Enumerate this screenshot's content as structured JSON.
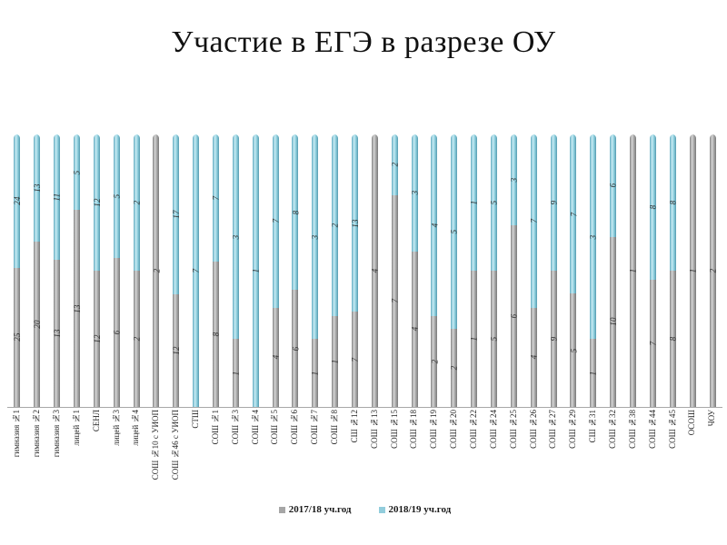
{
  "title": "Участие в ЕГЭ в разрезе ОУ",
  "colors": {
    "series_2017_18": "#a6a6a6",
    "series_2018_19": "#92cddc",
    "axis": "#a8a8a8"
  },
  "legend": [
    {
      "label": "2017/18 уч.год",
      "color": "#a6a6a6"
    },
    {
      "label": "2018/19 уч.год",
      "color": "#92cddc"
    }
  ],
  "chart_data": {
    "type": "bar",
    "subtype": "100%-stacked-column",
    "title": "Участие в ЕГЭ в разрезе ОУ",
    "xlabel": "",
    "ylabel": "",
    "ylim_percent": [
      0,
      100
    ],
    "grid": false,
    "legend_position": "bottom",
    "value_labels": "on segments, rotated 90° CCW, italic",
    "categories": [
      "гимназия №1",
      "гимназия №2",
      "гимназия №3",
      "лицей №1",
      "СЕНЛ",
      "лицей №3",
      "лицей №4",
      "СОШ №10 с УИОП",
      "СОШ №46 с УИОП",
      "СТШ",
      "СОШ №1",
      "СОШ №3",
      "СОШ №4",
      "СОШ №5",
      "СОШ №6",
      "СОШ №7",
      "СОШ №8",
      "СШ №12",
      "СОШ №13",
      "СОШ №15",
      "СОШ №18",
      "СОШ №19",
      "СОШ №20",
      "СОШ №22",
      "СОШ №24",
      "СОШ №25",
      "СОШ №26",
      "СОШ №27",
      "СОШ №29",
      "СШ №31",
      "СОШ №32",
      "СОШ №38",
      "СОШ №44",
      "СОШ №45",
      "ОСОШ",
      "ЧОУ"
    ],
    "series": [
      {
        "name": "2017/18 уч.год",
        "color": "#a6a6a6",
        "stack_position": "bottom",
        "values": [
          25,
          20,
          13,
          13,
          12,
          6,
          2,
          2,
          12,
          0,
          8,
          1,
          0,
          4,
          6,
          1,
          1,
          7,
          4,
          7,
          4,
          2,
          2,
          1,
          5,
          6,
          4,
          9,
          5,
          1,
          10,
          1,
          7,
          8,
          1,
          2
        ]
      },
      {
        "name": "2018/19 уч.год",
        "color": "#92cddc",
        "stack_position": "top",
        "values": [
          24,
          13,
          11,
          5,
          12,
          5,
          2,
          0,
          17,
          7,
          7,
          3,
          1,
          7,
          8,
          3,
          2,
          13,
          0,
          2,
          3,
          4,
          5,
          1,
          5,
          3,
          7,
          9,
          7,
          3,
          6,
          0,
          8,
          8,
          0,
          0
        ]
      }
    ]
  }
}
